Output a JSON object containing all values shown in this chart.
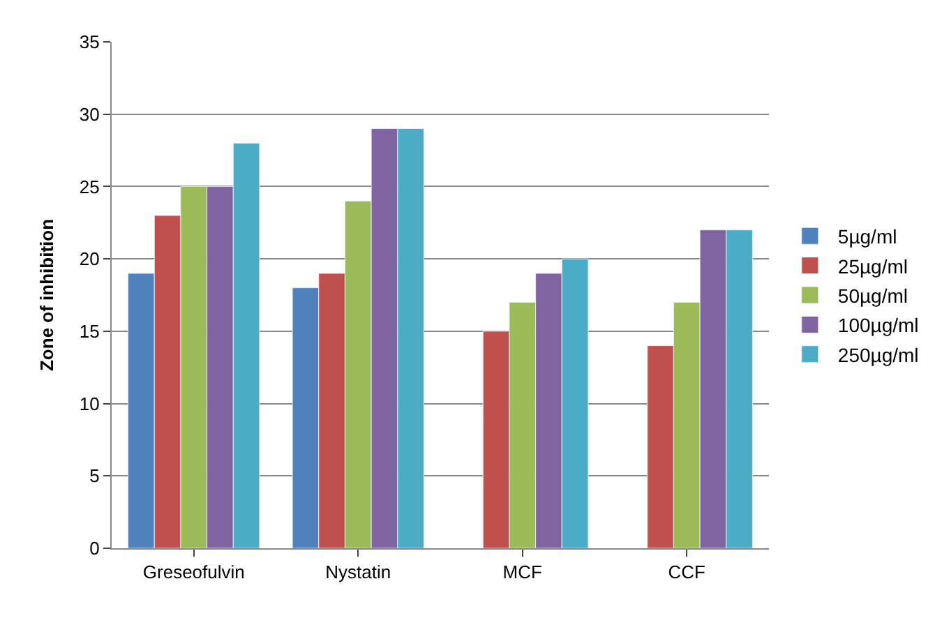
{
  "chart_data": {
    "type": "bar",
    "ylabel": "Zone of inhibition",
    "categories": [
      "Greseofulvin",
      "Nystatin",
      "MCF",
      "CCF"
    ],
    "series": [
      {
        "name": "5µg/ml",
        "color": "#4f81bd",
        "values": [
          19,
          18,
          null,
          null
        ]
      },
      {
        "name": "25µg/ml",
        "color": "#c0504d",
        "values": [
          23,
          19,
          15,
          14
        ]
      },
      {
        "name": "50µg/ml",
        "color": "#9bbb59",
        "values": [
          25,
          24,
          17,
          17
        ]
      },
      {
        "name": "100µg/ml",
        "color": "#8064a2",
        "values": [
          25,
          29,
          19,
          22
        ]
      },
      {
        "name": "250µg/ml",
        "color": "#4bacc6",
        "values": [
          28,
          29,
          20,
          22
        ]
      }
    ],
    "ylim": [
      0,
      35
    ],
    "yticks": [
      0,
      5,
      10,
      15,
      20,
      25,
      30,
      35
    ],
    "grid": "y",
    "legend": "right"
  }
}
